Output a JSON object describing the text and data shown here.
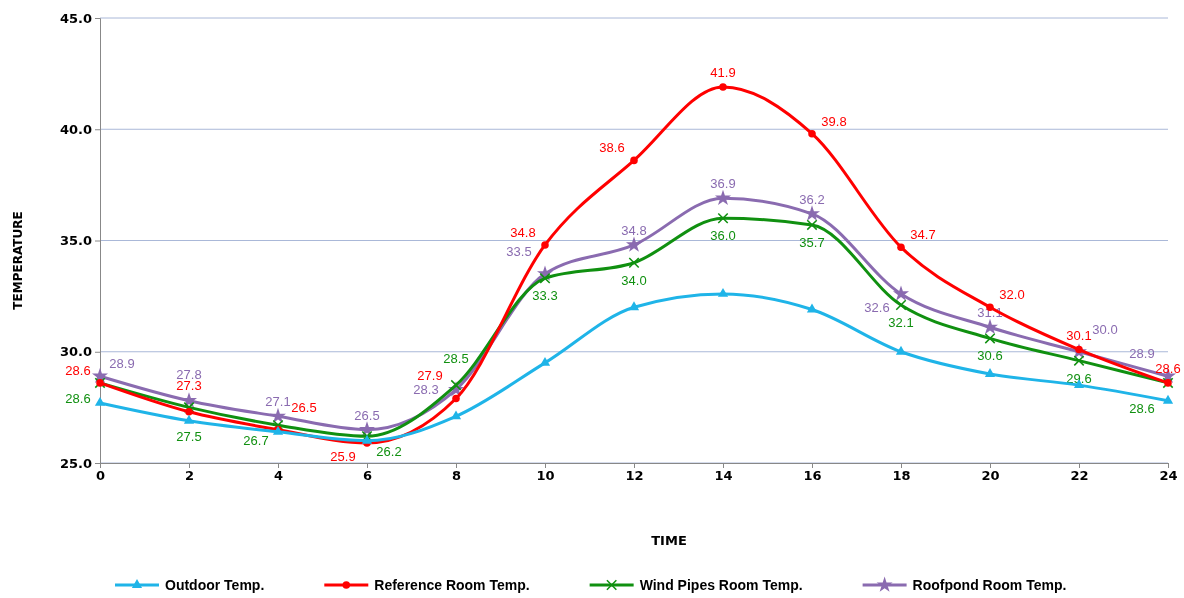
{
  "chart_data": {
    "type": "line",
    "xlabel": "TIME",
    "ylabel": "TEMPERATURE",
    "x": [
      0,
      2,
      4,
      6,
      8,
      10,
      12,
      14,
      16,
      18,
      20,
      22,
      24
    ],
    "xlim": [
      0,
      24
    ],
    "xticks": [
      0,
      2,
      4,
      6,
      8,
      10,
      12,
      14,
      16,
      18,
      20,
      22,
      24
    ],
    "ylim": [
      25,
      45
    ],
    "yticks": [
      {
        "value": 25,
        "label": "25.0"
      },
      {
        "value": 30,
        "label": "30.0"
      },
      {
        "value": 35,
        "label": "35.0"
      },
      {
        "value": 40,
        "label": "40.0"
      },
      {
        "value": 45,
        "label": "45.0"
      }
    ],
    "grid": "y",
    "legend": "bottom",
    "series": [
      {
        "name": "Outdoor Temp.",
        "color": "#1fb4e8",
        "marker": "triangle",
        "values": [
          27.7,
          26.9,
          26.4,
          26.0,
          27.1,
          29.5,
          32.0,
          32.6,
          31.9,
          30.0,
          29.0,
          28.5,
          27.8
        ]
      },
      {
        "name": "Reference Room Temp.",
        "color": "#ff0000",
        "marker": "circle",
        "values": [
          28.6,
          27.3,
          26.5,
          25.9,
          27.9,
          34.8,
          38.6,
          41.9,
          39.8,
          34.7,
          32.0,
          30.1,
          28.6
        ],
        "value_labels": [
          "28.6",
          "27.3",
          "26.5",
          "25.9",
          "27.9",
          "34.8",
          "38.6",
          "41.9",
          "39.8",
          "34.7",
          "32.0",
          "30.1",
          "28.6"
        ]
      },
      {
        "name": "Wind Pipes Room Temp.",
        "color": "#109010",
        "marker": "cross",
        "values": [
          28.6,
          27.5,
          26.7,
          26.2,
          28.5,
          33.3,
          34.0,
          36.0,
          35.7,
          32.1,
          30.6,
          29.6,
          28.6
        ],
        "value_labels": [
          "28.6",
          "27.5",
          "26.7",
          "26.2",
          "28.5",
          "33.3",
          "34.0",
          "36.0",
          "35.7",
          "32.1",
          "30.6",
          "29.6",
          "28.6"
        ]
      },
      {
        "name": "Roofpond Room Temp.",
        "color": "#8a6bb0",
        "marker": "star",
        "values": [
          28.9,
          27.8,
          27.1,
          26.5,
          28.3,
          33.5,
          34.8,
          36.9,
          36.2,
          32.6,
          31.1,
          30.0,
          28.9
        ],
        "value_labels": [
          "28.9",
          "27.8",
          "27.1",
          "26.5",
          "28.3",
          "33.5",
          "34.8",
          "36.9",
          "36.2",
          "32.6",
          "31.1",
          "30.0",
          "28.9"
        ]
      }
    ]
  }
}
